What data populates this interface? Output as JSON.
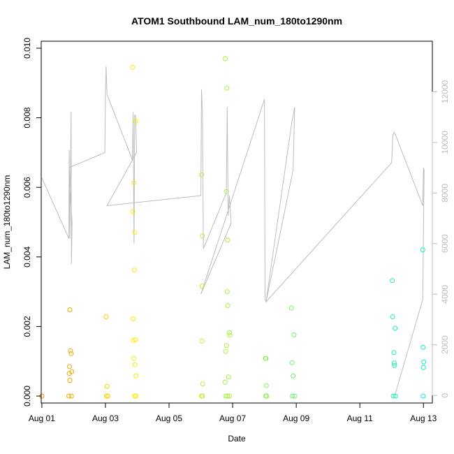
{
  "chart_data": {
    "type": "scatter",
    "title": "ATOM1 Southbound LAM_num_180to1290nm",
    "xlabel": "Date",
    "ylabel": "LAM_num_180to1290nm",
    "x_ticks": [
      "Aug 01",
      "Aug 03",
      "Aug 05",
      "Aug 07",
      "Aug 09",
      "Aug 11",
      "Aug 13"
    ],
    "x_tick_days": [
      1,
      3,
      5,
      7,
      9,
      11,
      13
    ],
    "xlim": [
      0.98,
      13.28
    ],
    "y_ticks": [
      "0.000",
      "0.002",
      "0.004",
      "0.006",
      "0.008",
      "0.010"
    ],
    "y_tick_values": [
      0,
      0.002,
      0.004,
      0.006,
      0.008,
      0.01
    ],
    "ylim": [
      -0.0002,
      0.0102
    ],
    "y2_ticks": [
      "0",
      "2000",
      "4000",
      "6000",
      "8000",
      "10000",
      "12000"
    ],
    "y2_tick_values": [
      0,
      2000,
      4000,
      6000,
      8000,
      10000,
      12000
    ],
    "y2lim": [
      -300,
      14000
    ],
    "grid": false,
    "colors": {
      "series_gradient_start": "#f08c00",
      "series_gradient_mid": "#f7f000",
      "series_gradient_end": "#00f0c8",
      "right_axis_line": "#bdbdbd"
    },
    "points": [
      {
        "x": 1.0,
        "y": 0.0
      },
      {
        "x": 1.85,
        "y": 0.0
      },
      {
        "x": 1.86,
        "y": 0.00065
      },
      {
        "x": 1.87,
        "y": 0.00085
      },
      {
        "x": 1.88,
        "y": 0.00248
      },
      {
        "x": 1.9,
        "y": 0.0013
      },
      {
        "x": 1.92,
        "y": 0.00122
      },
      {
        "x": 1.94,
        "y": 0.0007
      },
      {
        "x": 1.88,
        "y": 0.00045
      },
      {
        "x": 1.93,
        "y": 0.0
      },
      {
        "x": 3.02,
        "y": 0.00228
      },
      {
        "x": 3.05,
        "y": 0.00028
      },
      {
        "x": 3.03,
        "y": 0.0
      },
      {
        "x": 3.08,
        "y": 0.0
      },
      {
        "x": 3.85,
        "y": 0.00945
      },
      {
        "x": 3.86,
        "y": 0.0053
      },
      {
        "x": 3.87,
        "y": 0.00222
      },
      {
        "x": 3.88,
        "y": 0.0016
      },
      {
        "x": 3.89,
        "y": 0.00108
      },
      {
        "x": 3.9,
        "y": 0.00613
      },
      {
        "x": 3.91,
        "y": 0.00362
      },
      {
        "x": 3.92,
        "y": 0.0047
      },
      {
        "x": 3.93,
        "y": 0.0009
      },
      {
        "x": 3.94,
        "y": 0.00162
      },
      {
        "x": 3.95,
        "y": 0.0079
      },
      {
        "x": 3.96,
        "y": 0.00058
      },
      {
        "x": 3.92,
        "y": 0.0
      },
      {
        "x": 3.96,
        "y": 0.0
      },
      {
        "x": 6.02,
        "y": 0.00636
      },
      {
        "x": 6.03,
        "y": 0.00158
      },
      {
        "x": 6.04,
        "y": 0.00316
      },
      {
        "x": 6.05,
        "y": 0.0046
      },
      {
        "x": 6.06,
        "y": 0.00035
      },
      {
        "x": 6.02,
        "y": 0.0
      },
      {
        "x": 6.05,
        "y": 0.0
      },
      {
        "x": 6.77,
        "y": 0.0097
      },
      {
        "x": 6.8,
        "y": 0.00588
      },
      {
        "x": 6.82,
        "y": 0.00885
      },
      {
        "x": 6.84,
        "y": 0.00448
      },
      {
        "x": 6.83,
        "y": 0.003
      },
      {
        "x": 6.85,
        "y": 0.0026
      },
      {
        "x": 6.78,
        "y": 0.00128
      },
      {
        "x": 6.81,
        "y": 0.00145
      },
      {
        "x": 6.87,
        "y": 0.00055
      },
      {
        "x": 6.9,
        "y": 0.00182
      },
      {
        "x": 6.91,
        "y": 0.00175
      },
      {
        "x": 6.76,
        "y": 0.0004
      },
      {
        "x": 6.78,
        "y": 0.0
      },
      {
        "x": 6.84,
        "y": 0.0
      },
      {
        "x": 6.9,
        "y": 0.0
      },
      {
        "x": 8.03,
        "y": 0.00108
      },
      {
        "x": 8.05,
        "y": 0.00108
      },
      {
        "x": 8.06,
        "y": 0.0003
      },
      {
        "x": 8.04,
        "y": 0.0
      },
      {
        "x": 8.07,
        "y": 0.0
      },
      {
        "x": 8.85,
        "y": 0.00253
      },
      {
        "x": 8.87,
        "y": 0.00096
      },
      {
        "x": 8.9,
        "y": 0.00058
      },
      {
        "x": 8.93,
        "y": 0.00176
      },
      {
        "x": 8.88,
        "y": 0.0
      },
      {
        "x": 8.95,
        "y": 0.0
      },
      {
        "x": 12.02,
        "y": 0.00332
      },
      {
        "x": 12.03,
        "y": 0.00228
      },
      {
        "x": 12.07,
        "y": 0.00125
      },
      {
        "x": 12.08,
        "y": 0.00095
      },
      {
        "x": 12.09,
        "y": 0.00088
      },
      {
        "x": 12.11,
        "y": 0.00195
      },
      {
        "x": 12.05,
        "y": 0.0
      },
      {
        "x": 12.12,
        "y": 0.0
      },
      {
        "x": 12.98,
        "y": 0.0042
      },
      {
        "x": 12.99,
        "y": 0.0014
      },
      {
        "x": 13.0,
        "y": 0.00082
      },
      {
        "x": 13.01,
        "y": 0.00098
      },
      {
        "x": 12.99,
        "y": 0.0
      }
    ],
    "right_series": {
      "x": [
        1.0,
        1.85,
        1.86,
        1.88,
        1.92,
        1.93,
        1.95,
        1.86,
        2.98,
        3.0,
        3.02,
        3.05,
        3.85,
        3.87,
        3.9,
        3.92,
        3.95,
        3.98,
        3.05,
        6.0,
        6.02,
        6.05,
        6.08,
        6.8,
        6.83,
        6.86,
        6.9,
        6.95,
        6.0,
        8.0,
        8.02,
        8.05,
        8.9,
        8.95,
        8.85,
        8.05,
        12.0,
        12.04,
        12.08,
        12.12,
        12.98,
        13.0,
        13.02,
        12.98,
        12.1
      ],
      "y": [
        8600,
        6200,
        9700,
        6200,
        11200,
        5200,
        6800,
        9000,
        9600,
        12000,
        13000,
        11900,
        9300,
        11200,
        6000,
        11100,
        11000,
        9600,
        7500,
        7900,
        12100,
        11200,
        5800,
        8000,
        11400,
        7100,
        7900,
        6800,
        4000,
        11700,
        3800,
        3700,
        8900,
        11400,
        10700,
        3700,
        9200,
        10300,
        10400,
        10300,
        7500,
        9000,
        8900,
        3800,
        0
      ]
    }
  }
}
